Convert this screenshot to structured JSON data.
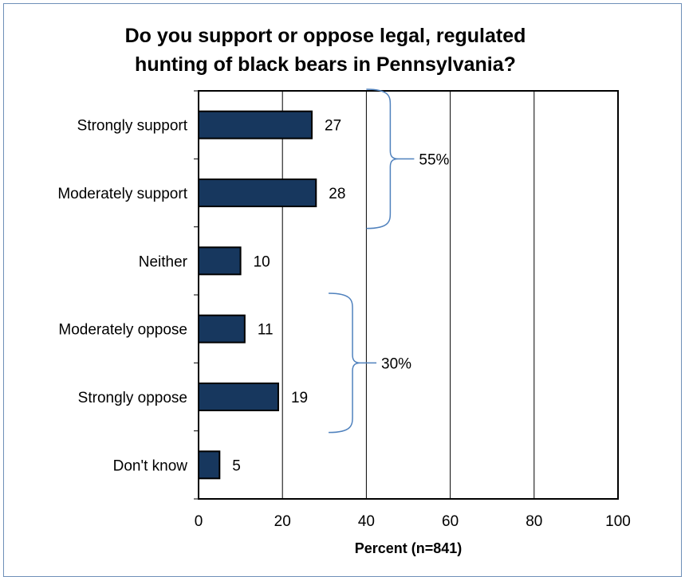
{
  "chart_data": {
    "type": "bar",
    "orientation": "horizontal",
    "title_lines": [
      "Do you support or oppose legal, regulated",
      "hunting of black bears in Pennsylvania?"
    ],
    "categories": [
      "Strongly support",
      "Moderately support",
      "Neither",
      "Moderately oppose",
      "Strongly oppose",
      "Don't know"
    ],
    "values": [
      27,
      28,
      10,
      11,
      19,
      5
    ],
    "data_labels": [
      "27",
      "28",
      "10",
      "11",
      "19",
      "5"
    ],
    "xlabel": "Percent (n=841)",
    "ylabel": "",
    "xlim": [
      0,
      100
    ],
    "xticks": [
      "0",
      "20",
      "40",
      "60",
      "80",
      "100"
    ],
    "grid": "vertical",
    "bar_color": "#17375e",
    "annotations": [
      {
        "text": "55%",
        "groups": [
          "Strongly support",
          "Moderately support"
        ]
      },
      {
        "text": "30%",
        "groups": [
          "Moderately oppose",
          "Strongly oppose"
        ]
      }
    ],
    "bracket_color": "#4f81bd"
  }
}
